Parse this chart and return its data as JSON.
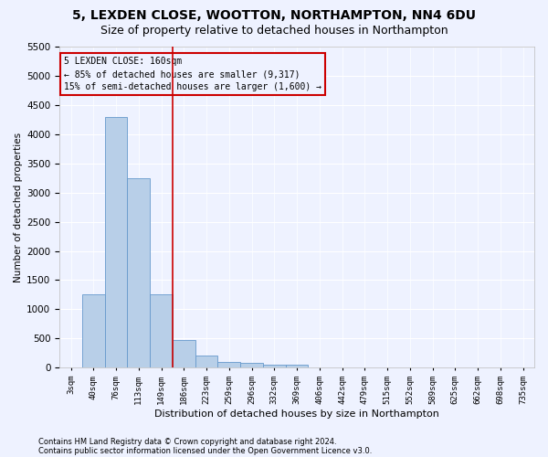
{
  "title1": "5, LEXDEN CLOSE, WOOTTON, NORTHAMPTON, NN4 6DU",
  "title2": "Size of property relative to detached houses in Northampton",
  "xlabel": "Distribution of detached houses by size in Northampton",
  "ylabel": "Number of detached properties",
  "footnote1": "Contains HM Land Registry data © Crown copyright and database right 2024.",
  "footnote2": "Contains public sector information licensed under the Open Government Licence v3.0.",
  "annotation_line1": "5 LEXDEN CLOSE: 160sqm",
  "annotation_line2": "← 85% of detached houses are smaller (9,317)",
  "annotation_line3": "15% of semi-detached houses are larger (1,600) →",
  "bar_labels": [
    "3sqm",
    "40sqm",
    "76sqm",
    "113sqm",
    "149sqm",
    "186sqm",
    "223sqm",
    "259sqm",
    "296sqm",
    "332sqm",
    "369sqm",
    "406sqm",
    "442sqm",
    "479sqm",
    "515sqm",
    "552sqm",
    "589sqm",
    "625sqm",
    "662sqm",
    "698sqm",
    "735sqm"
  ],
  "bar_values": [
    0,
    1250,
    4300,
    3250,
    1250,
    475,
    200,
    100,
    75,
    50,
    50,
    0,
    0,
    0,
    0,
    0,
    0,
    0,
    0,
    0,
    0
  ],
  "bar_color": "#b8cfe8",
  "bar_edge_color": "#6699cc",
  "vline_x": 4.5,
  "vline_color": "#cc0000",
  "ylim": [
    0,
    5500
  ],
  "yticks": [
    0,
    500,
    1000,
    1500,
    2000,
    2500,
    3000,
    3500,
    4000,
    4500,
    5000,
    5500
  ],
  "bg_color": "#eef2ff",
  "grid_color": "#ffffff",
  "annotation_box_color": "#cc0000",
  "title1_fontsize": 10,
  "title2_fontsize": 9
}
